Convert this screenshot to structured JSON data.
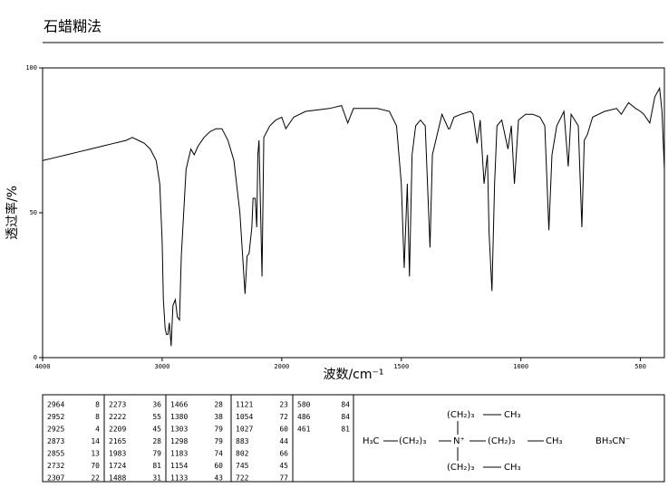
{
  "title": "石蜡糊法",
  "chart_data": {
    "type": "line",
    "color": "#000000",
    "x_label": "波数/cm⁻¹",
    "y_label": "透过率/%",
    "xlim": [
      4000,
      400
    ],
    "x_scale_break": 2000,
    "xticks": [
      4000,
      3000,
      2000,
      1500,
      1000,
      500
    ],
    "ylim": [
      0,
      100
    ],
    "yticks": [
      0,
      50,
      100
    ],
    "x": [
      4000,
      3900,
      3800,
      3700,
      3600,
      3500,
      3400,
      3300,
      3250,
      3200,
      3150,
      3100,
      3050,
      3020,
      3000,
      2990,
      2975,
      2964,
      2952,
      2940,
      2925,
      2910,
      2890,
      2873,
      2855,
      2840,
      2800,
      2760,
      2732,
      2700,
      2650,
      2600,
      2550,
      2500,
      2450,
      2400,
      2350,
      2307,
      2290,
      2273,
      2250,
      2240,
      2222,
      2209,
      2200,
      2190,
      2165,
      2150,
      2100,
      2050,
      2000,
      1983,
      1950,
      1900,
      1800,
      1750,
      1724,
      1700,
      1600,
      1550,
      1520,
      1500,
      1488,
      1475,
      1466,
      1455,
      1440,
      1420,
      1400,
      1380,
      1370,
      1330,
      1303,
      1298,
      1280,
      1250,
      1210,
      1200,
      1183,
      1170,
      1154,
      1140,
      1133,
      1121,
      1110,
      1100,
      1080,
      1054,
      1040,
      1027,
      1010,
      980,
      950,
      920,
      900,
      883,
      870,
      850,
      820,
      802,
      790,
      760,
      745,
      735,
      722,
      700,
      650,
      600,
      580,
      550,
      520,
      500,
      486,
      461,
      440,
      420,
      410,
      400
    ],
    "values": [
      68,
      69,
      70,
      71,
      72,
      73,
      74,
      75,
      76,
      75,
      74,
      72,
      68,
      60,
      40,
      20,
      10,
      8,
      8,
      12,
      4,
      18,
      20,
      14,
      13,
      35,
      65,
      72,
      70,
      73,
      76,
      78,
      79,
      79,
      75,
      68,
      50,
      22,
      35,
      36,
      45,
      55,
      55,
      45,
      70,
      75,
      28,
      76,
      80,
      82,
      83,
      79,
      83,
      85,
      86,
      87,
      81,
      86,
      86,
      85,
      80,
      60,
      31,
      60,
      28,
      70,
      80,
      82,
      80,
      38,
      70,
      84,
      79,
      79,
      83,
      84,
      85,
      84,
      74,
      82,
      60,
      70,
      43,
      23,
      60,
      80,
      82,
      72,
      80,
      60,
      82,
      84,
      84,
      83,
      80,
      44,
      70,
      80,
      85,
      66,
      84,
      80,
      45,
      75,
      77,
      83,
      85,
      86,
      84,
      88,
      86,
      85,
      84,
      81,
      90,
      93,
      85,
      65
    ]
  },
  "peak_table": [
    [
      [
        2964,
        8
      ],
      [
        2952,
        8
      ],
      [
        2925,
        4
      ],
      [
        2873,
        14
      ],
      [
        2855,
        13
      ],
      [
        2732,
        70
      ],
      [
        2307,
        22
      ]
    ],
    [
      [
        2273,
        36
      ],
      [
        2222,
        55
      ],
      [
        2209,
        45
      ],
      [
        2165,
        28
      ],
      [
        1983,
        79
      ],
      [
        1724,
        81
      ],
      [
        1488,
        31
      ]
    ],
    [
      [
        1466,
        28
      ],
      [
        1380,
        38
      ],
      [
        1303,
        79
      ],
      [
        1298,
        79
      ],
      [
        1183,
        74
      ],
      [
        1154,
        60
      ],
      [
        1133,
        43
      ]
    ],
    [
      [
        1121,
        23
      ],
      [
        1054,
        72
      ],
      [
        1027,
        60
      ],
      [
        883,
        44
      ],
      [
        802,
        66
      ],
      [
        745,
        45
      ],
      [
        722,
        77
      ]
    ],
    [
      [
        580,
        84
      ],
      [
        486,
        84
      ],
      [
        461,
        81
      ]
    ]
  ],
  "structure": {
    "top_chain": "(CH₂)₃",
    "top_terminal": "CH₃",
    "left_terminal": "H₃C",
    "left_chain": "(CH₂)₃",
    "center": "N⁺",
    "right_chain": "(CH₂)₃",
    "right_terminal": "CH₃",
    "bottom_chain": "(CH₂)₃",
    "bottom_terminal": "CH₃",
    "counterion": "BH₃CN⁻"
  }
}
